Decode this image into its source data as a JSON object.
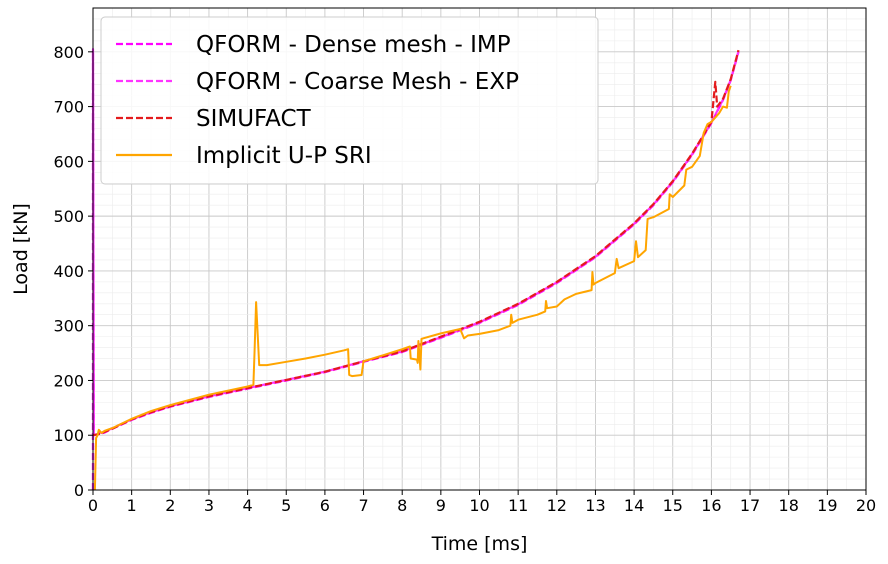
{
  "chart_data": {
    "type": "line",
    "xlabel": "Time [ms]",
    "ylabel": "Load [kN]",
    "xlim": [
      0,
      20
    ],
    "ylim": [
      0,
      880
    ],
    "xticks": [
      0,
      1,
      2,
      3,
      4,
      5,
      6,
      7,
      8,
      9,
      10,
      11,
      12,
      13,
      14,
      15,
      16,
      17,
      18,
      19,
      20
    ],
    "yticks": [
      0,
      100,
      200,
      300,
      400,
      500,
      600,
      700,
      800
    ],
    "grid": true,
    "grid_minor_x": 0.5,
    "grid_minor_y": 20,
    "legend_position": "upper-left",
    "series": [
      {
        "name": "QFORM - Dense mesh - IMP",
        "color": "#ff00ff",
        "style": "dashed",
        "points": [
          [
            0,
            0
          ],
          [
            0,
            800
          ],
          [
            0.02,
            100
          ],
          [
            0.3,
            105
          ],
          [
            0.5,
            112
          ],
          [
            1,
            128
          ],
          [
            1.5,
            141
          ],
          [
            2,
            152
          ],
          [
            3,
            170
          ],
          [
            4,
            185
          ],
          [
            5,
            200
          ],
          [
            6,
            215
          ],
          [
            7,
            234
          ],
          [
            8,
            252
          ],
          [
            9,
            278
          ],
          [
            10,
            305
          ],
          [
            11,
            338
          ],
          [
            12,
            378
          ],
          [
            13,
            425
          ],
          [
            14,
            485
          ],
          [
            14.5,
            520
          ],
          [
            15,
            562
          ],
          [
            15.5,
            612
          ],
          [
            16,
            670
          ],
          [
            16.3,
            712
          ],
          [
            16.5,
            748
          ],
          [
            16.7,
            800
          ]
        ]
      },
      {
        "name": "QFORM - Coarse Mesh - EXP",
        "color": "#ff33ff",
        "style": "dashed",
        "points": [
          [
            0,
            0
          ],
          [
            0,
            805
          ],
          [
            0.02,
            102
          ],
          [
            0.3,
            106
          ],
          [
            0.5,
            113
          ],
          [
            1,
            129
          ],
          [
            1.5,
            142
          ],
          [
            2,
            153
          ],
          [
            3,
            171
          ],
          [
            4,
            186
          ],
          [
            5,
            201
          ],
          [
            6,
            216
          ],
          [
            7,
            235
          ],
          [
            8,
            253
          ],
          [
            9,
            279
          ],
          [
            10,
            306
          ],
          [
            11,
            339
          ],
          [
            12,
            379
          ],
          [
            13,
            426
          ],
          [
            14,
            486
          ],
          [
            14.5,
            521
          ],
          [
            15,
            563
          ],
          [
            15.5,
            613
          ],
          [
            16,
            671
          ],
          [
            16.3,
            713
          ],
          [
            16.5,
            749
          ],
          [
            16.7,
            801
          ]
        ]
      },
      {
        "name": "SIMUFACT",
        "color": "#e31a1c",
        "style": "dashed",
        "points": [
          [
            0,
            100
          ],
          [
            0.2,
            103
          ],
          [
            0.5,
            112
          ],
          [
            1,
            129
          ],
          [
            1.5,
            142
          ],
          [
            2,
            153
          ],
          [
            3,
            171
          ],
          [
            4,
            186
          ],
          [
            5,
            201
          ],
          [
            6,
            216
          ],
          [
            7,
            235
          ],
          [
            8,
            253
          ],
          [
            9,
            280
          ],
          [
            10,
            307
          ],
          [
            11,
            340
          ],
          [
            12,
            380
          ],
          [
            13,
            427
          ],
          [
            14,
            487
          ],
          [
            14.5,
            522
          ],
          [
            15,
            564
          ],
          [
            15.5,
            614
          ],
          [
            16,
            672
          ],
          [
            16.1,
            745
          ],
          [
            16.15,
            700
          ],
          [
            16.3,
            714
          ],
          [
            16.5,
            750
          ],
          [
            16.7,
            803
          ]
        ]
      },
      {
        "name": "Implicit U-P SRI",
        "color": "#ffa500",
        "style": "solid",
        "points": [
          [
            0.05,
            0
          ],
          [
            0.08,
            95
          ],
          [
            0.12,
            100
          ],
          [
            0.15,
            110
          ],
          [
            0.22,
            104
          ],
          [
            0.3,
            108
          ],
          [
            0.5,
            113
          ],
          [
            1,
            130
          ],
          [
            1.5,
            144
          ],
          [
            2,
            155
          ],
          [
            3,
            174
          ],
          [
            4,
            189
          ],
          [
            4.15,
            192
          ],
          [
            4.18,
            255
          ],
          [
            4.22,
            343
          ],
          [
            4.3,
            228
          ],
          [
            4.5,
            228
          ],
          [
            5,
            234
          ],
          [
            5.5,
            240
          ],
          [
            6,
            247
          ],
          [
            6.5,
            255
          ],
          [
            6.6,
            257
          ],
          [
            6.63,
            210
          ],
          [
            6.7,
            208
          ],
          [
            6.95,
            210
          ],
          [
            7.0,
            235
          ],
          [
            7.5,
            246
          ],
          [
            8,
            257
          ],
          [
            8.2,
            262
          ],
          [
            8.22,
            240
          ],
          [
            8.38,
            238
          ],
          [
            8.4,
            232
          ],
          [
            8.42,
            272
          ],
          [
            8.47,
            220
          ],
          [
            8.5,
            276
          ],
          [
            9,
            286
          ],
          [
            9.5,
            294
          ],
          [
            9.6,
            277
          ],
          [
            9.7,
            282
          ],
          [
            10,
            285
          ],
          [
            10.5,
            292
          ],
          [
            10.8,
            300
          ],
          [
            10.82,
            320
          ],
          [
            10.85,
            305
          ],
          [
            11,
            311
          ],
          [
            11.5,
            320
          ],
          [
            11.7,
            326
          ],
          [
            11.72,
            345
          ],
          [
            11.75,
            332
          ],
          [
            12,
            335
          ],
          [
            12.2,
            348
          ],
          [
            12.5,
            358
          ],
          [
            12.9,
            365
          ],
          [
            12.92,
            398
          ],
          [
            12.95,
            375
          ],
          [
            13,
            378
          ],
          [
            13.5,
            396
          ],
          [
            13.55,
            422
          ],
          [
            13.6,
            405
          ],
          [
            14,
            418
          ],
          [
            14.05,
            454
          ],
          [
            14.1,
            425
          ],
          [
            14.3,
            438
          ],
          [
            14.35,
            495
          ],
          [
            14.5,
            498
          ],
          [
            14.9,
            513
          ],
          [
            14.92,
            540
          ],
          [
            15,
            535
          ],
          [
            15.3,
            556
          ],
          [
            15.35,
            585
          ],
          [
            15.5,
            590
          ],
          [
            15.7,
            610
          ],
          [
            15.8,
            652
          ],
          [
            15.9,
            668
          ],
          [
            16,
            672
          ],
          [
            16.2,
            688
          ],
          [
            16.3,
            700
          ],
          [
            16.4,
            698
          ],
          [
            16.45,
            728
          ],
          [
            16.5,
            738
          ]
        ]
      }
    ]
  }
}
